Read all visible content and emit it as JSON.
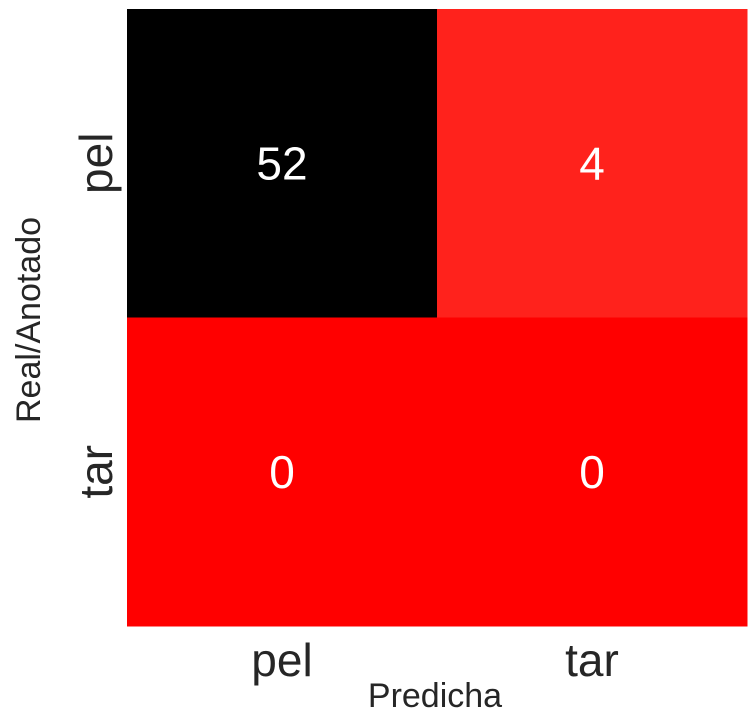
{
  "chart_data": {
    "type": "heatmap",
    "title": "",
    "xlabel": "Predicha",
    "ylabel": "Real/Anotado",
    "x_categories": [
      "pel",
      "tar"
    ],
    "y_categories": [
      "pel",
      "tar"
    ],
    "values": [
      [
        52,
        4
      ],
      [
        0,
        0
      ]
    ],
    "colormap": [
      "#ff0000",
      "#ffe0b8",
      "#000000"
    ],
    "colorbar": false,
    "grid": false
  }
}
